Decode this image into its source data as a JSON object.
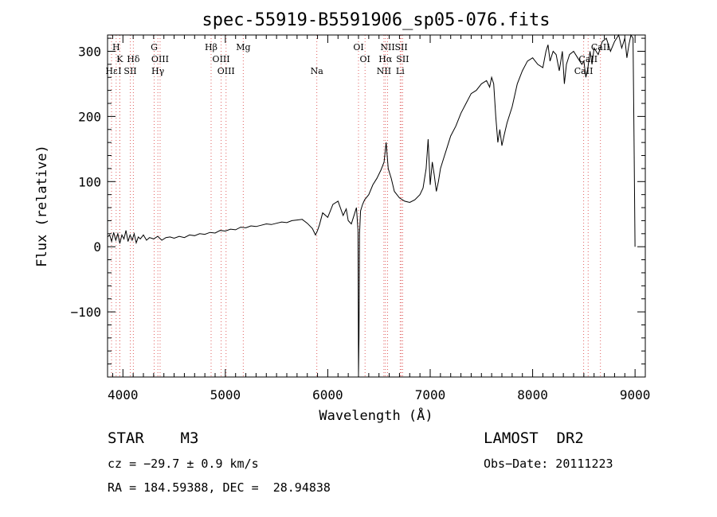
{
  "chart_data": {
    "type": "line",
    "title": "spec-55919-B5591906_sp05-076.fits",
    "xlabel": "Wavelength (Å)",
    "ylabel": "Flux (relative)",
    "xlim": [
      3850,
      9100
    ],
    "ylim": [
      -200,
      325
    ],
    "xticks": [
      4000,
      5000,
      6000,
      7000,
      8000,
      9000
    ],
    "yticks": [
      -100,
      0,
      100,
      200,
      300
    ],
    "line_color": "#000000",
    "marker_color": "#e06060",
    "lines": [
      {
        "label": "H",
        "wave": 3934,
        "row": 0
      },
      {
        "label": "K",
        "wave": 3969,
        "row": 1
      },
      {
        "label": "Hε",
        "wave": 3889,
        "row": 2
      },
      {
        "label": "I",
        "wave": 3970,
        "row": 2
      },
      {
        "label": "Hδ",
        "wave": 4102,
        "row": 1
      },
      {
        "label": "SII",
        "wave": 4072,
        "row": 2
      },
      {
        "label": "G",
        "wave": 4305,
        "row": 0
      },
      {
        "label": "OIII",
        "wave": 4363,
        "row": 1
      },
      {
        "label": "Hγ",
        "wave": 4341,
        "row": 2
      },
      {
        "label": "Hβ",
        "wave": 4861,
        "row": 0
      },
      {
        "label": "OIII",
        "wave": 4959,
        "row": 1
      },
      {
        "label": "OIII",
        "wave": 5007,
        "row": 2
      },
      {
        "label": "Mg",
        "wave": 5175,
        "row": 0
      },
      {
        "label": "Na",
        "wave": 5893,
        "row": 2
      },
      {
        "label": "OI",
        "wave": 6300,
        "row": 0
      },
      {
        "label": "OI",
        "wave": 6364,
        "row": 1
      },
      {
        "label": "NII",
        "wave": 6548,
        "row": 2
      },
      {
        "label": "NII",
        "wave": 6584,
        "row": 0
      },
      {
        "label": "Hα",
        "wave": 6563,
        "row": 1
      },
      {
        "label": "SII",
        "wave": 6717,
        "row": 0
      },
      {
        "label": "SII",
        "wave": 6731,
        "row": 1
      },
      {
        "label": "Li",
        "wave": 6707,
        "row": 2
      },
      {
        "label": "CaII",
        "wave": 8498,
        "row": 2
      },
      {
        "label": "CaII",
        "wave": 8542,
        "row": 1
      },
      {
        "label": "CaII",
        "wave": 8662,
        "row": 0
      }
    ],
    "spectrum": {
      "x": [
        3850,
        3870,
        3890,
        3910,
        3930,
        3950,
        3970,
        3990,
        4010,
        4030,
        4050,
        4070,
        4090,
        4110,
        4130,
        4150,
        4170,
        4200,
        4230,
        4260,
        4300,
        4340,
        4380,
        4420,
        4460,
        4500,
        4550,
        4600,
        4650,
        4700,
        4750,
        4800,
        4850,
        4900,
        4950,
        5000,
        5050,
        5100,
        5150,
        5200,
        5250,
        5300,
        5350,
        5400,
        5450,
        5500,
        5550,
        5600,
        5650,
        5700,
        5750,
        5800,
        5850,
        5880,
        5900,
        5920,
        5950,
        6000,
        6050,
        6100,
        6150,
        6180,
        6200,
        6230,
        6260,
        6280,
        6295,
        6300,
        6305,
        6310,
        6320,
        6340,
        6360,
        6400,
        6440,
        6480,
        6520,
        6550,
        6570,
        6590,
        6620,
        6650,
        6700,
        6750,
        6800,
        6850,
        6900,
        6930,
        6960,
        6980,
        7000,
        7020,
        7040,
        7060,
        7080,
        7100,
        7130,
        7160,
        7200,
        7250,
        7300,
        7350,
        7400,
        7450,
        7500,
        7550,
        7580,
        7600,
        7620,
        7640,
        7660,
        7680,
        7700,
        7720,
        7750,
        7800,
        7850,
        7900,
        7950,
        8000,
        8050,
        8100,
        8130,
        8150,
        8170,
        8200,
        8230,
        8260,
        8290,
        8310,
        8330,
        8360,
        8400,
        8440,
        8480,
        8500,
        8520,
        8540,
        8560,
        8580,
        8600,
        8640,
        8680,
        8720,
        8740,
        8760,
        8800,
        8840,
        8870,
        8900,
        8920,
        8940,
        8960,
        8980,
        8990,
        9000
      ],
      "y": [
        15,
        18,
        8,
        22,
        10,
        20,
        5,
        18,
        12,
        25,
        8,
        18,
        10,
        20,
        6,
        15,
        12,
        18,
        10,
        14,
        12,
        16,
        10,
        14,
        15,
        13,
        16,
        14,
        18,
        17,
        20,
        19,
        22,
        21,
        25,
        24,
        27,
        26,
        30,
        29,
        32,
        31,
        33,
        35,
        34,
        36,
        38,
        37,
        40,
        41,
        42,
        36,
        28,
        18,
        25,
        34,
        52,
        45,
        65,
        70,
        48,
        58,
        40,
        35,
        50,
        60,
        25,
        -195,
        -140,
        20,
        55,
        65,
        72,
        80,
        95,
        105,
        118,
        130,
        160,
        120,
        105,
        85,
        75,
        70,
        68,
        72,
        80,
        90,
        120,
        165,
        95,
        130,
        110,
        85,
        100,
        120,
        135,
        150,
        170,
        185,
        205,
        220,
        235,
        240,
        250,
        255,
        245,
        260,
        250,
        200,
        160,
        180,
        155,
        170,
        190,
        215,
        250,
        270,
        285,
        290,
        280,
        275,
        300,
        310,
        285,
        300,
        295,
        270,
        300,
        250,
        280,
        295,
        300,
        290,
        280,
        285,
        260,
        275,
        300,
        280,
        305,
        295,
        315,
        320,
        310,
        300,
        315,
        330,
        305,
        320,
        290,
        310,
        330,
        320,
        160,
        0
      ]
    }
  },
  "info": {
    "object": "STAR    M3",
    "survey": "LAMOST  DR2",
    "cz": "cz = −29.7 ± 0.9 km/s",
    "obs_date": "Obs−Date: 20111223",
    "coords": "RA = 184.59388, DEC =  28.94838"
  }
}
